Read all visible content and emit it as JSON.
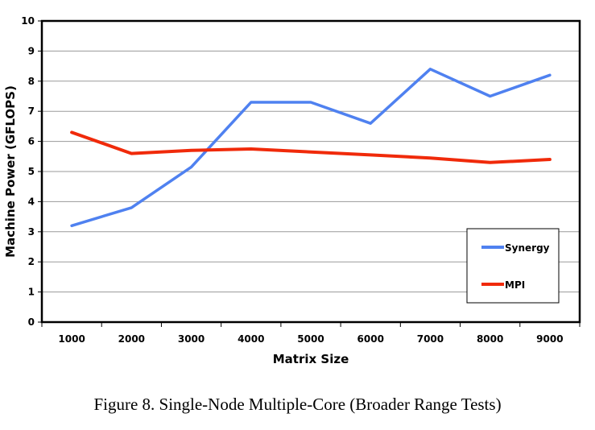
{
  "caption": "Figure 8.   Single-Node Multiple-Core (Broader Range Tests)",
  "chart_data": {
    "type": "line",
    "title": "",
    "xlabel": "Matrix Size",
    "ylabel": "Machine Power (GFLOPS)",
    "categories": [
      "1000",
      "2000",
      "3000",
      "4000",
      "5000",
      "6000",
      "7000",
      "8000",
      "9000"
    ],
    "ylim": [
      0,
      10
    ],
    "yticks": [
      "0",
      "1",
      "2",
      "3",
      "4",
      "5",
      "6",
      "7",
      "8",
      "9",
      "10"
    ],
    "grid": true,
    "legend_position": "bottom-right",
    "series": [
      {
        "name": "Synergy",
        "color": "#4f81f0",
        "values": [
          3.2,
          3.8,
          5.15,
          7.3,
          7.3,
          6.6,
          8.4,
          7.5,
          8.2
        ]
      },
      {
        "name": "MPI",
        "color": "#f02a0a",
        "values": [
          6.3,
          5.6,
          5.7,
          5.75,
          5.65,
          5.55,
          5.45,
          5.3,
          5.4
        ]
      }
    ]
  }
}
